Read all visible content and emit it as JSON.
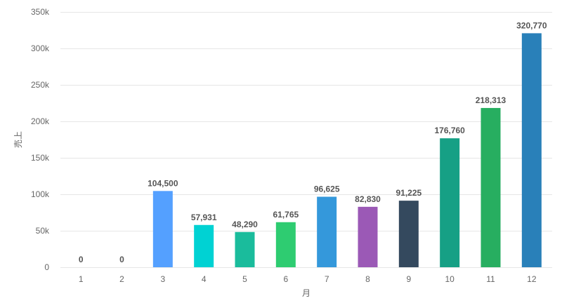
{
  "chart_data": {
    "type": "bar",
    "title": "",
    "xlabel": "月",
    "ylabel": "売上",
    "categories": [
      "1",
      "2",
      "3",
      "4",
      "5",
      "6",
      "7",
      "8",
      "9",
      "10",
      "11",
      "12"
    ],
    "values": [
      0,
      0,
      104500,
      57931,
      48290,
      61765,
      96625,
      82830,
      91225,
      176760,
      218313,
      320770
    ],
    "data_labels": [
      "0",
      "0",
      "104,500",
      "57,931",
      "48,290",
      "61,765",
      "96,625",
      "82,830",
      "91,225",
      "176,760",
      "218,313",
      "320,770"
    ],
    "colors": [
      "#3498db",
      "#3498db",
      "#54a0ff",
      "#00d2d3",
      "#1abc9c",
      "#2ecc71",
      "#3498db",
      "#9b59b6",
      "#34495e",
      "#16a085",
      "#27ae60",
      "#2980b9"
    ],
    "ylim": [
      0,
      350000
    ],
    "yticks": [
      0,
      50000,
      100000,
      150000,
      200000,
      250000,
      300000,
      350000
    ],
    "ytick_labels": [
      "0",
      "50k",
      "100k",
      "150k",
      "200k",
      "250k",
      "300k",
      "350k"
    ],
    "grid": true,
    "legend": "none"
  }
}
